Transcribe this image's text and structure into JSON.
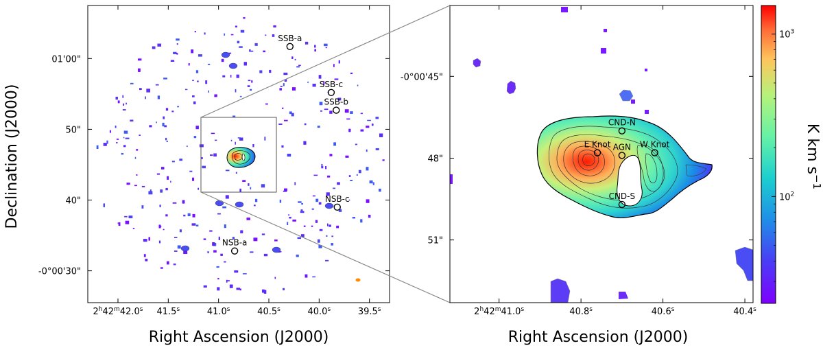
{
  "chart_data": [
    {
      "type": "heatmap",
      "panel": "full-field",
      "xlabel": "Right Ascension (J2000)",
      "ylabel": "Declination (J2000)",
      "x_tick_labels": [
        {
          "value_s": 42.0,
          "text": "2h42m42.0s",
          "h": "2",
          "m": "42",
          "s": "42.0"
        },
        {
          "value_s": 41.5,
          "text": "41.5s",
          "num": "41.5"
        },
        {
          "value_s": 41.0,
          "text": "41.0s",
          "num": "41.0"
        },
        {
          "value_s": 40.5,
          "text": "40.5s",
          "num": "40.5"
        },
        {
          "value_s": 40.0,
          "text": "40.0s",
          "num": "40.0"
        },
        {
          "value_s": 39.5,
          "text": "39.5s",
          "num": "39.5"
        }
      ],
      "y_tick_labels": [
        {
          "value_arcsec": 30,
          "text": "-0°00'30\""
        },
        {
          "value_arcsec": 40,
          "text": "40\""
        },
        {
          "value_arcsec": 50,
          "text": "50\""
        },
        {
          "value_arcsec": 60,
          "text": "01'00\""
        }
      ],
      "xlim_s": [
        42.3,
        39.3
      ],
      "ylim_arcsec": [
        67.5,
        25.5
      ],
      "sources": [
        {
          "name": "NSB-a",
          "ra_s": 40.84,
          "dec_arcsec": 32.8
        },
        {
          "name": "NSB-c",
          "ra_s": 39.82,
          "dec_arcsec": 39.0
        },
        {
          "name": "SSB-b",
          "ra_s": 39.83,
          "dec_arcsec": 52.7
        },
        {
          "name": "SSB-c",
          "ra_s": 39.88,
          "dec_arcsec": 55.2
        },
        {
          "name": "SSB-a",
          "ra_s": 40.29,
          "dec_arcsec": 61.7
        }
      ],
      "zoom_box": {
        "ra_s": [
          41.12,
          40.38
        ],
        "dec_arcsec": [
          42.4,
          53.3
        ]
      },
      "beam_color": "#ff8c00"
    },
    {
      "type": "heatmap",
      "panel": "zoom",
      "xlabel": "Right Ascension (J2000)",
      "ylabel": "",
      "x_tick_labels": [
        {
          "value_s": 41.0,
          "text": "2h42m41.0s",
          "h": "2",
          "m": "42",
          "s": "41.0"
        },
        {
          "value_s": 40.8,
          "text": "40.8s",
          "num": "40.8"
        },
        {
          "value_s": 40.6,
          "text": "40.6s",
          "num": "40.6"
        },
        {
          "value_s": 40.4,
          "text": "40.4s",
          "num": "40.4"
        }
      ],
      "y_tick_labels": [
        {
          "value_arcsec": 45,
          "text": "-0°00'45\""
        },
        {
          "value_arcsec": 48,
          "text": "48\""
        },
        {
          "value_arcsec": 51,
          "text": "51\""
        }
      ],
      "xlim_s": [
        41.12,
        40.38
      ],
      "ylim_arcsec": [
        42.4,
        53.3
      ],
      "sources": [
        {
          "name": "CND-N",
          "ra_s": 40.7,
          "dec_arcsec": 47.0
        },
        {
          "name": "E Knot",
          "ra_s": 40.76,
          "dec_arcsec": 47.8
        },
        {
          "name": "AGN",
          "ra_s": 40.7,
          "dec_arcsec": 47.9
        },
        {
          "name": "W Knot",
          "ra_s": 40.62,
          "dec_arcsec": 47.8
        },
        {
          "name": "CND-S",
          "ra_s": 40.7,
          "dec_arcsec": 49.7
        }
      ]
    }
  ],
  "colorbar": {
    "label": "K km s^-1",
    "label_text": "K km s",
    "label_exp": "−1",
    "scale": "log",
    "range": [
      22,
      1500
    ],
    "tick_labels": [
      {
        "value": 100,
        "base": "10",
        "exp": "2"
      },
      {
        "value": 1000,
        "base": "10",
        "exp": "3"
      }
    ],
    "colormap": "rainbow"
  }
}
